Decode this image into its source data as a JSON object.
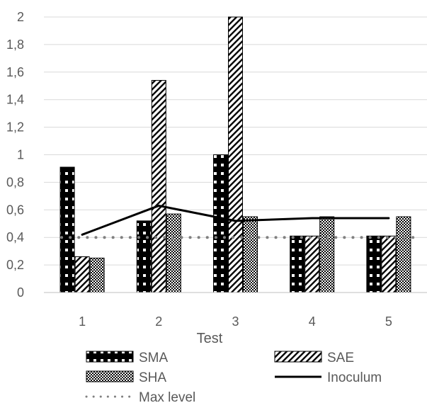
{
  "chart_data": {
    "type": "bar",
    "categories": [
      "1",
      "2",
      "3",
      "4",
      "5"
    ],
    "xlabel": "Test",
    "ylabel": "",
    "ylim": [
      0,
      2
    ],
    "yticks": [
      "0",
      "0,2",
      "0,4",
      "0,6",
      "0,8",
      "1",
      "1,2",
      "1,4",
      "1,6",
      "1,8",
      "2"
    ],
    "grid": true,
    "legend_position": "bottom",
    "series": [
      {
        "name": "SMA",
        "kind": "bar",
        "pattern": "black-with-white-squares",
        "values": [
          0.91,
          0.52,
          1.0,
          0.41,
          0.41
        ]
      },
      {
        "name": "SAE",
        "kind": "bar",
        "pattern": "diagonal-hatch",
        "values": [
          0.26,
          1.54,
          2.0,
          0.41,
          0.41
        ]
      },
      {
        "name": "SHA",
        "kind": "bar",
        "pattern": "fine-checker",
        "values": [
          0.25,
          0.57,
          0.55,
          0.55,
          0.55
        ]
      },
      {
        "name": "Inoculum",
        "kind": "line",
        "color": "#000000",
        "values": [
          0.42,
          0.63,
          0.52,
          0.54,
          0.54
        ]
      },
      {
        "name": "Max level",
        "kind": "line",
        "style": "dotted",
        "color": "#808080",
        "values": [
          0.4,
          0.4,
          0.4,
          0.4,
          0.4
        ]
      }
    ]
  }
}
